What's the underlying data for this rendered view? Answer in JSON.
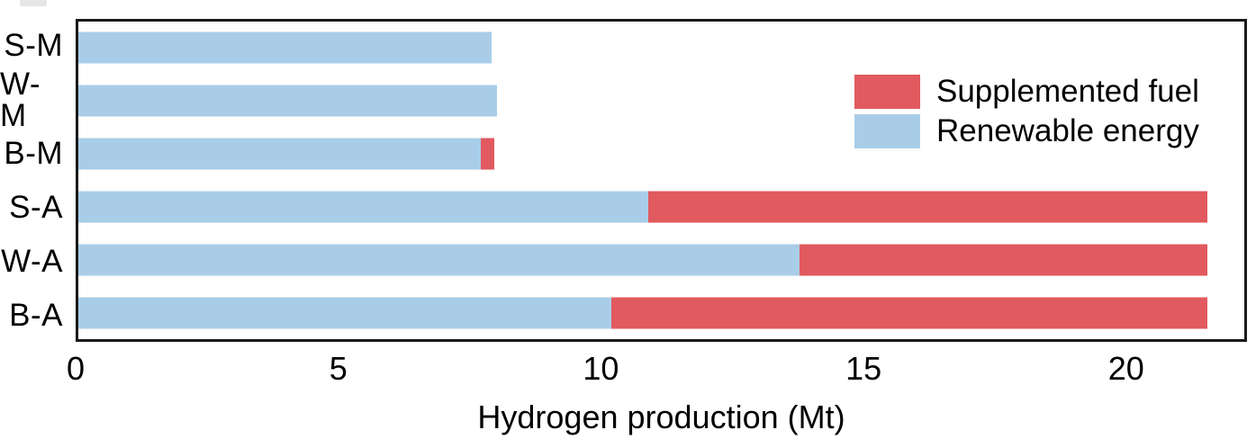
{
  "figure": {
    "background": "#ffffff",
    "axis_color": "#1a1a1a"
  },
  "legend": {
    "items": [
      {
        "name": "supplemented-fuel",
        "label": "Supplemented fuel",
        "color": "#e15a5f"
      },
      {
        "name": "renewable-energy",
        "label": "Renewable energy",
        "color": "#a9cde8"
      }
    ]
  },
  "chart_data": {
    "type": "bar",
    "orientation": "horizontal",
    "stacked": true,
    "categories": [
      "S-M",
      "W-M",
      "B-M",
      "S-A",
      "W-A",
      "B-A"
    ],
    "series": [
      {
        "name": "Renewable energy",
        "color": "#a9cde8",
        "values": [
          7.9,
          8.0,
          7.7,
          10.9,
          13.8,
          10.2
        ]
      },
      {
        "name": "Supplemented fuel",
        "color": "#e15a5f",
        "values": [
          0,
          0,
          0.25,
          10.7,
          7.8,
          11.4
        ]
      }
    ],
    "totals": [
      7.9,
      8.0,
      7.95,
      21.6,
      21.6,
      21.6
    ],
    "title": "",
    "xlabel": "Hydrogen production (Mt)",
    "ylabel": "",
    "xlim": [
      0,
      22.3
    ],
    "x_ticks": [
      0,
      5,
      10,
      15,
      20
    ],
    "grid": false,
    "legend_position": "upper right"
  }
}
